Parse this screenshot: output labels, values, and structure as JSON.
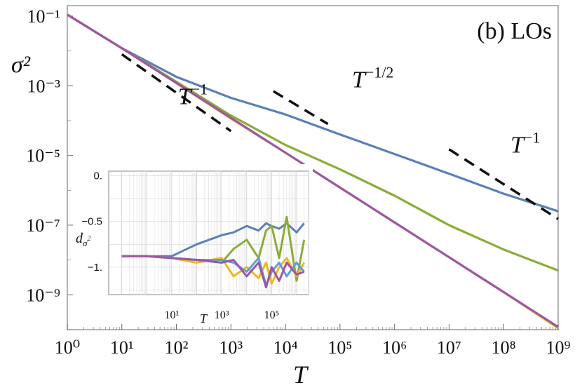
{
  "chart_data": [
    {
      "type": "line",
      "panel": "main",
      "title": "(b) LOs",
      "xlabel": "T",
      "ylabel": "σ²",
      "xscale": "log",
      "yscale": "log",
      "xlim": [
        1,
        1000000000
      ],
      "ylim": [
        1e-10,
        0.2
      ],
      "grid": false,
      "x_tick_labels": [
        "10⁰",
        "10¹",
        "10²",
        "10³",
        "10⁴",
        "10⁵",
        "10⁶",
        "10⁷",
        "10⁸",
        "10⁹"
      ],
      "y_tick_labels": [
        "10⁻¹",
        "10⁻³",
        "10⁻⁵",
        "10⁻⁷",
        "10⁻⁹"
      ],
      "x": [
        1,
        10,
        100,
        1000,
        10000,
        100000,
        1000000,
        10000000,
        100000000,
        1000000000
      ],
      "series": [
        {
          "color": "#5b80b8",
          "values": [
            0.11,
            0.012,
            0.0018,
            0.00045,
            0.00015,
            4e-05,
            1.1e-05,
            3e-06,
            8e-07,
            2.5e-07
          ]
        },
        {
          "color": "#8aad36",
          "values": [
            0.11,
            0.012,
            0.0013,
            0.00014,
            2e-05,
            4e-06,
            7e-07,
            1e-07,
            2e-08,
            5e-09
          ]
        },
        {
          "color": "#f2b81a",
          "values": [
            0.11,
            0.012,
            0.0012,
            0.000115,
            1.2e-05,
            1.2e-06,
            1.2e-07,
            1.2e-08,
            1.2e-09,
            1.1e-10
          ]
        },
        {
          "color": "#9c57a5",
          "values": [
            0.11,
            0.012,
            0.0012,
            0.00012,
            1.2e-05,
            1.2e-06,
            1.2e-07,
            1.2e-08,
            1.2e-09,
            1.2e-10
          ]
        }
      ],
      "annotations": [
        {
          "text": "T",
          "sup": "−1",
          "x": 200,
          "y": 0.0003,
          "ref_x": [
            10,
            1000
          ],
          "ref_y": [
            0.008,
            5e-05
          ]
        },
        {
          "text": "T",
          "sup": "−1/2",
          "x": 400000,
          "y": 0.0009,
          "ref_x": [
            6000,
            60000
          ],
          "ref_y": [
            0.0007,
            8e-05
          ]
        },
        {
          "text": "T",
          "sup": "−1",
          "x": 250000000,
          "y": 1.2e-05,
          "ref_x": [
            10000000,
            1000000000
          ],
          "ref_y": [
            1.5e-05,
            1.5e-07
          ]
        }
      ]
    },
    {
      "type": "line",
      "panel": "inset",
      "xlabel": "T",
      "ylabel": "d",
      "ylabel_sub": "σ",
      "ylabel_sub_sup": "2",
      "xscale": "log",
      "xlim": [
        0.03,
        3000000
      ],
      "ylim": [
        -1.3,
        0.05
      ],
      "grid": true,
      "x_ticks": [
        10,
        1000,
        100000
      ],
      "x_tick_labels": [
        "10¹",
        "10³",
        "10⁵"
      ],
      "y_ticks": [
        0,
        -0.5,
        -1
      ],
      "y_tick_labels": [
        "0.",
        "−0.5",
        "−1."
      ],
      "x": [
        0.1,
        1,
        10,
        100,
        1000,
        3000,
        10000,
        30000,
        60000,
        100000,
        200000,
        400000,
        1000000,
        2000000
      ],
      "series": [
        {
          "color": "#5b80b8",
          "values": [
            -0.88,
            -0.88,
            -0.88,
            -0.75,
            -0.65,
            -0.62,
            -0.55,
            -0.6,
            -0.52,
            -0.55,
            -0.58,
            -0.52,
            -0.62,
            -0.52
          ]
        },
        {
          "color": "#8aad36",
          "values": [
            -0.88,
            -0.88,
            -0.9,
            -0.92,
            -0.95,
            -0.8,
            -0.7,
            -0.9,
            -0.6,
            -0.55,
            -0.9,
            -0.45,
            -1.15,
            -0.7
          ]
        },
        {
          "color": "#f2b81a",
          "values": [
            -0.88,
            -0.88,
            -0.9,
            -0.95,
            -0.9,
            -1.1,
            -1.0,
            -1.12,
            -0.95,
            -1.18,
            -1.0,
            -0.9,
            -1.1,
            -0.95
          ]
        },
        {
          "color": "#5fa0d2",
          "values": [
            -0.88,
            -0.88,
            -0.9,
            -0.92,
            -0.92,
            -0.95,
            -1.05,
            -0.9,
            -1.2,
            -1.05,
            -0.95,
            -1.1,
            -0.95,
            -1.05
          ]
        },
        {
          "color": "#9c57a5",
          "values": [
            -0.88,
            -0.88,
            -0.9,
            -0.92,
            -0.95,
            -0.92,
            -1.1,
            -0.95,
            -1.22,
            -1.0,
            -1.15,
            -0.95,
            -1.08,
            -1.05
          ]
        }
      ]
    }
  ]
}
